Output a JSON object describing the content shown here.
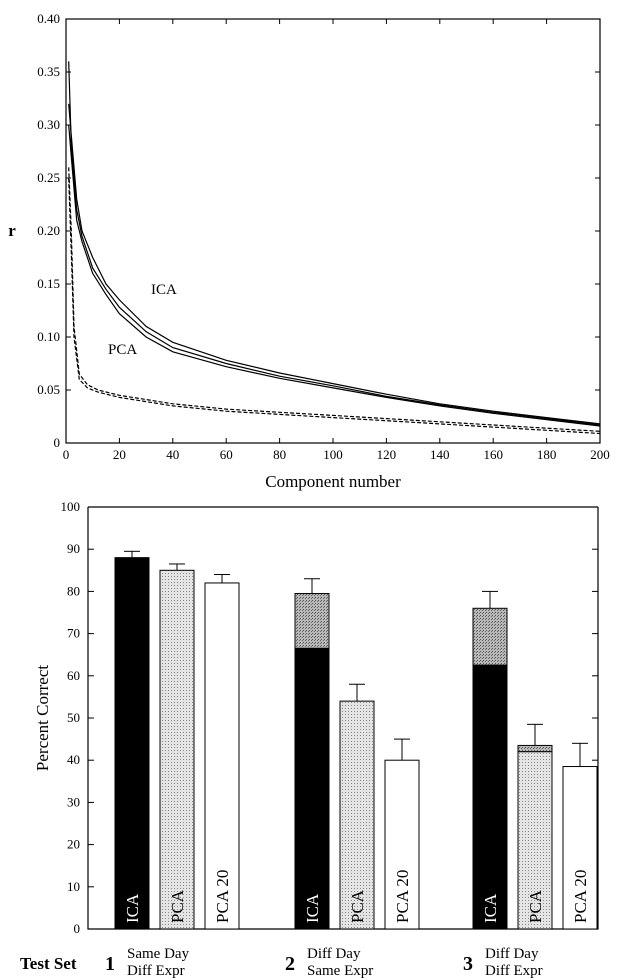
{
  "chart_data": [
    {
      "type": "line",
      "title": "",
      "xlabel": "Component number",
      "ylabel": "r",
      "xlim": [
        0,
        200
      ],
      "ylim": [
        0,
        0.4
      ],
      "xticks": [
        "0",
        "20",
        "40",
        "60",
        "80",
        "100",
        "120",
        "140",
        "160",
        "180",
        "200"
      ],
      "yticks": [
        "0",
        "0.05",
        "0.10",
        "0.15",
        "0.20",
        "0.25",
        "0.30",
        "0.35",
        "0.40"
      ],
      "grid": false,
      "annotations": [
        "ICA",
        "PCA"
      ],
      "series": [
        {
          "group": "ICA",
          "style": "solid",
          "x": [
            1,
            2,
            4,
            6,
            10,
            15,
            20,
            30,
            40,
            60,
            80,
            100,
            120,
            140,
            160,
            180,
            200
          ],
          "y": [
            0.32,
            0.29,
            0.23,
            0.2,
            0.175,
            0.15,
            0.135,
            0.11,
            0.095,
            0.078,
            0.066,
            0.056,
            0.046,
            0.037,
            0.03,
            0.024,
            0.018
          ]
        },
        {
          "group": "ICA",
          "style": "solid",
          "x": [
            1,
            2,
            4,
            6,
            10,
            15,
            20,
            30,
            40,
            60,
            80,
            100,
            120,
            140,
            160,
            180,
            200
          ],
          "y": [
            0.36,
            0.28,
            0.22,
            0.195,
            0.165,
            0.145,
            0.128,
            0.105,
            0.09,
            0.075,
            0.063,
            0.054,
            0.044,
            0.036,
            0.029,
            0.023,
            0.017
          ]
        },
        {
          "group": "ICA",
          "style": "solid",
          "x": [
            1,
            2,
            4,
            6,
            10,
            15,
            20,
            30,
            40,
            60,
            80,
            100,
            120,
            140,
            160,
            180,
            200
          ],
          "y": [
            0.3,
            0.27,
            0.21,
            0.19,
            0.16,
            0.14,
            0.122,
            0.1,
            0.086,
            0.072,
            0.061,
            0.052,
            0.043,
            0.035,
            0.028,
            0.022,
            0.016
          ]
        },
        {
          "group": "PCA",
          "style": "dashed",
          "x": [
            1,
            2,
            3,
            5,
            8,
            12,
            20,
            40,
            60,
            80,
            100,
            120,
            140,
            160,
            180,
            200
          ],
          "y": [
            0.26,
            0.2,
            0.11,
            0.065,
            0.055,
            0.05,
            0.045,
            0.037,
            0.032,
            0.029,
            0.026,
            0.023,
            0.02,
            0.017,
            0.014,
            0.011
          ]
        },
        {
          "group": "PCA",
          "style": "dashed",
          "x": [
            1,
            2,
            3,
            5,
            8,
            12,
            20,
            40,
            60,
            80,
            100,
            120,
            140,
            160,
            180,
            200
          ],
          "y": [
            0.25,
            0.18,
            0.1,
            0.06,
            0.052,
            0.048,
            0.043,
            0.035,
            0.03,
            0.027,
            0.024,
            0.021,
            0.018,
            0.015,
            0.012,
            0.009
          ]
        }
      ]
    },
    {
      "type": "bar",
      "title": "",
      "xlabel": "",
      "ylabel": "Percent Correct",
      "ylim": [
        0,
        100
      ],
      "yticks": [
        "0",
        "10",
        "20",
        "30",
        "40",
        "50",
        "60",
        "70",
        "80",
        "90",
        "100"
      ],
      "grid": false,
      "row_label": "Test Set",
      "bar_labels": [
        "ICA",
        "PCA",
        "PCA 20"
      ],
      "groups": [
        {
          "number": "1",
          "line1": "Same Day",
          "line2": "Diff Expr",
          "bars": [
            {
              "label": "ICA",
              "value": 88,
              "base": 88,
              "error": 1.5
            },
            {
              "label": "PCA",
              "value": 85,
              "base": 85,
              "error": 1.5
            },
            {
              "label": "PCA 20",
              "value": 82,
              "base": 82,
              "error": 2
            }
          ]
        },
        {
          "number": "2",
          "line1": "Diff Day",
          "line2": "Same Expr",
          "bars": [
            {
              "label": "ICA",
              "value": 79.5,
              "base": 66.5,
              "error": 3.5
            },
            {
              "label": "PCA",
              "value": 54,
              "base": 54,
              "error": 4
            },
            {
              "label": "PCA 20",
              "value": 40,
              "base": 40,
              "error": 5
            }
          ]
        },
        {
          "number": "3",
          "line1": "Diff Day",
          "line2": "Diff Expr",
          "bars": [
            {
              "label": "ICA",
              "value": 76,
              "base": 62.5,
              "error": 4
            },
            {
              "label": "PCA",
              "value": 43.5,
              "base": 42,
              "error": 5
            },
            {
              "label": "PCA 20",
              "value": 38.5,
              "base": 38.5,
              "error": 5.5
            }
          ]
        }
      ],
      "colors": {
        "ICA": "#000000",
        "PCA": "#d4d4d4",
        "PCA 20": "#ffffff",
        "stacked": "#9a9a9a"
      }
    }
  ]
}
